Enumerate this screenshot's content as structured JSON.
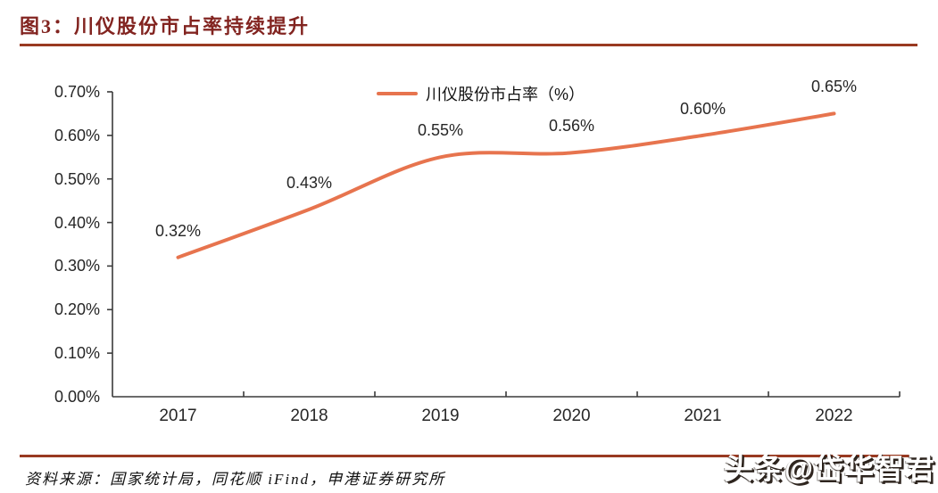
{
  "header": {
    "title": "图3：川仪股份市占率持续提升"
  },
  "legend": {
    "label": "川仪股份市占率（%）"
  },
  "footer": {
    "source": "资料来源：国家统计局，同花顺 iFind，申港证券研究所",
    "watermark": "头条@岱华智君"
  },
  "colors": {
    "title": "#822420",
    "rule": "#993A21",
    "line": "#E7744E",
    "axis": "#3A3A3A",
    "label": "#262626"
  },
  "chart_data": {
    "type": "line",
    "title": "川仪股份市占率持续提升",
    "categories": [
      "2017",
      "2018",
      "2019",
      "2020",
      "2021",
      "2022"
    ],
    "series": [
      {
        "name": "川仪股份市占率（%）",
        "values": [
          0.32,
          0.43,
          0.55,
          0.56,
          0.6,
          0.65
        ]
      }
    ],
    "data_labels": [
      "0.32%",
      "0.43%",
      "0.55%",
      "0.56%",
      "0.60%",
      "0.65%"
    ],
    "y_ticks": [
      "0.00%",
      "0.10%",
      "0.20%",
      "0.30%",
      "0.40%",
      "0.50%",
      "0.60%",
      "0.70%"
    ],
    "ylim": [
      0,
      0.7
    ],
    "xlabel": "",
    "ylabel": "",
    "grid": false,
    "smooth": true,
    "markers": false,
    "legend_position": "top-center"
  }
}
